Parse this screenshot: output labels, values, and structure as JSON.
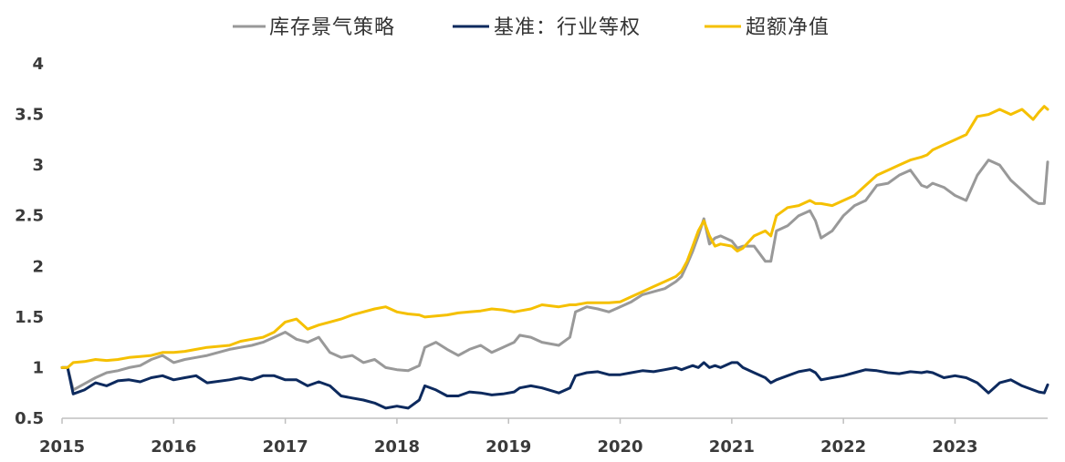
{
  "chart_data": {
    "type": "line",
    "title": "",
    "xlabel": "",
    "ylabel": "",
    "ylim": [
      0.5,
      4
    ],
    "xlim": [
      2015,
      2023.83
    ],
    "yticks": [
      "4",
      "3.5",
      "3",
      "2.5",
      "2",
      "1.5",
      "1",
      "0.5"
    ],
    "xticks": [
      "2015",
      "2016",
      "2017",
      "2018",
      "2019",
      "2020",
      "2021",
      "2022",
      "2023"
    ],
    "grid": false,
    "legend_position": "top",
    "series": [
      {
        "name": "库存景气策略",
        "color": "#999999",
        "x": [
          2015.0,
          2015.05,
          2015.1,
          2015.2,
          2015.3,
          2015.4,
          2015.5,
          2015.6,
          2015.7,
          2015.8,
          2015.9,
          2016.0,
          2016.1,
          2016.2,
          2016.3,
          2016.5,
          2016.6,
          2016.7,
          2016.8,
          2016.9,
          2017.0,
          2017.1,
          2017.2,
          2017.3,
          2017.4,
          2017.5,
          2017.6,
          2017.7,
          2017.8,
          2017.9,
          2018.0,
          2018.1,
          2018.2,
          2018.25,
          2018.35,
          2018.45,
          2018.55,
          2018.65,
          2018.75,
          2018.85,
          2018.95,
          2019.05,
          2019.1,
          2019.2,
          2019.3,
          2019.45,
          2019.55,
          2019.6,
          2019.7,
          2019.8,
          2019.9,
          2020.0,
          2020.1,
          2020.2,
          2020.3,
          2020.4,
          2020.5,
          2020.55,
          2020.6,
          2020.65,
          2020.7,
          2020.75,
          2020.8,
          2020.85,
          2020.9,
          2021.0,
          2021.05,
          2021.1,
          2021.2,
          2021.3,
          2021.35,
          2021.4,
          2021.5,
          2021.6,
          2021.7,
          2021.75,
          2021.8,
          2021.9,
          2022.0,
          2022.1,
          2022.2,
          2022.3,
          2022.4,
          2022.5,
          2022.6,
          2022.7,
          2022.75,
          2022.8,
          2022.9,
          2023.0,
          2023.1,
          2023.2,
          2023.3,
          2023.4,
          2023.5,
          2023.6,
          2023.7,
          2023.75,
          2023.8,
          2023.83
        ],
        "values": [
          1.0,
          1.0,
          0.78,
          0.84,
          0.9,
          0.95,
          0.97,
          1.0,
          1.02,
          1.08,
          1.12,
          1.05,
          1.08,
          1.1,
          1.12,
          1.18,
          1.2,
          1.22,
          1.25,
          1.3,
          1.35,
          1.28,
          1.25,
          1.3,
          1.15,
          1.1,
          1.12,
          1.05,
          1.08,
          1.0,
          0.98,
          0.97,
          1.02,
          1.2,
          1.25,
          1.18,
          1.12,
          1.18,
          1.22,
          1.15,
          1.2,
          1.25,
          1.32,
          1.3,
          1.25,
          1.22,
          1.3,
          1.55,
          1.6,
          1.58,
          1.55,
          1.6,
          1.65,
          1.72,
          1.75,
          1.78,
          1.85,
          1.9,
          2.02,
          2.15,
          2.3,
          2.47,
          2.22,
          2.28,
          2.3,
          2.25,
          2.18,
          2.2,
          2.2,
          2.05,
          2.05,
          2.35,
          2.4,
          2.5,
          2.55,
          2.45,
          2.28,
          2.35,
          2.5,
          2.6,
          2.65,
          2.8,
          2.82,
          2.9,
          2.95,
          2.8,
          2.78,
          2.82,
          2.78,
          2.7,
          2.65,
          2.9,
          3.05,
          3.0,
          2.85,
          2.75,
          2.65,
          2.62,
          2.62,
          3.03
        ]
      },
      {
        "name": "基准：行业等权",
        "color": "#0d2a5e",
        "x": [
          2015.0,
          2015.05,
          2015.1,
          2015.2,
          2015.3,
          2015.4,
          2015.5,
          2015.6,
          2015.7,
          2015.8,
          2015.9,
          2016.0,
          2016.1,
          2016.2,
          2016.3,
          2016.5,
          2016.6,
          2016.7,
          2016.8,
          2016.9,
          2017.0,
          2017.1,
          2017.2,
          2017.3,
          2017.4,
          2017.5,
          2017.6,
          2017.7,
          2017.8,
          2017.9,
          2018.0,
          2018.1,
          2018.2,
          2018.25,
          2018.35,
          2018.45,
          2018.55,
          2018.65,
          2018.75,
          2018.85,
          2018.95,
          2019.05,
          2019.1,
          2019.2,
          2019.3,
          2019.45,
          2019.55,
          2019.6,
          2019.7,
          2019.8,
          2019.9,
          2020.0,
          2020.1,
          2020.2,
          2020.3,
          2020.4,
          2020.5,
          2020.55,
          2020.6,
          2020.65,
          2020.7,
          2020.75,
          2020.8,
          2020.85,
          2020.9,
          2021.0,
          2021.05,
          2021.1,
          2021.2,
          2021.3,
          2021.35,
          2021.4,
          2021.5,
          2021.6,
          2021.7,
          2021.75,
          2021.8,
          2021.9,
          2022.0,
          2022.1,
          2022.2,
          2022.3,
          2022.4,
          2022.5,
          2022.6,
          2022.7,
          2022.75,
          2022.8,
          2022.9,
          2023.0,
          2023.1,
          2023.2,
          2023.3,
          2023.4,
          2023.5,
          2023.6,
          2023.7,
          2023.75,
          2023.8,
          2023.83
        ],
        "values": [
          1.0,
          1.0,
          0.74,
          0.78,
          0.85,
          0.82,
          0.87,
          0.88,
          0.86,
          0.9,
          0.92,
          0.88,
          0.9,
          0.92,
          0.85,
          0.88,
          0.9,
          0.88,
          0.92,
          0.92,
          0.88,
          0.88,
          0.82,
          0.86,
          0.82,
          0.72,
          0.7,
          0.68,
          0.65,
          0.6,
          0.62,
          0.6,
          0.68,
          0.82,
          0.78,
          0.72,
          0.72,
          0.76,
          0.75,
          0.73,
          0.74,
          0.76,
          0.8,
          0.82,
          0.8,
          0.75,
          0.8,
          0.92,
          0.95,
          0.96,
          0.93,
          0.93,
          0.95,
          0.97,
          0.96,
          0.98,
          1.0,
          0.98,
          1.0,
          1.02,
          1.0,
          1.05,
          1.0,
          1.02,
          1.0,
          1.05,
          1.05,
          1.0,
          0.95,
          0.9,
          0.85,
          0.88,
          0.92,
          0.96,
          0.98,
          0.95,
          0.88,
          0.9,
          0.92,
          0.95,
          0.98,
          0.97,
          0.95,
          0.94,
          0.96,
          0.95,
          0.96,
          0.95,
          0.9,
          0.92,
          0.9,
          0.85,
          0.75,
          0.85,
          0.88,
          0.82,
          0.78,
          0.76,
          0.75,
          0.83
        ]
      },
      {
        "name": "超额净值",
        "color": "#f5c000",
        "x": [
          2015.0,
          2015.05,
          2015.1,
          2015.2,
          2015.3,
          2015.4,
          2015.5,
          2015.6,
          2015.7,
          2015.8,
          2015.9,
          2016.0,
          2016.1,
          2016.2,
          2016.3,
          2016.5,
          2016.6,
          2016.7,
          2016.8,
          2016.9,
          2017.0,
          2017.1,
          2017.2,
          2017.3,
          2017.4,
          2017.5,
          2017.6,
          2017.7,
          2017.8,
          2017.9,
          2018.0,
          2018.1,
          2018.2,
          2018.25,
          2018.35,
          2018.45,
          2018.55,
          2018.65,
          2018.75,
          2018.85,
          2018.95,
          2019.05,
          2019.1,
          2019.2,
          2019.3,
          2019.45,
          2019.55,
          2019.6,
          2019.7,
          2019.8,
          2019.9,
          2020.0,
          2020.1,
          2020.2,
          2020.3,
          2020.4,
          2020.5,
          2020.55,
          2020.6,
          2020.65,
          2020.7,
          2020.75,
          2020.8,
          2020.85,
          2020.9,
          2021.0,
          2021.05,
          2021.1,
          2021.2,
          2021.3,
          2021.35,
          2021.4,
          2021.5,
          2021.6,
          2021.7,
          2021.75,
          2021.8,
          2021.9,
          2022.0,
          2022.1,
          2022.2,
          2022.3,
          2022.4,
          2022.5,
          2022.6,
          2022.7,
          2022.75,
          2022.8,
          2022.9,
          2023.0,
          2023.1,
          2023.2,
          2023.3,
          2023.4,
          2023.5,
          2023.6,
          2023.7,
          2023.75,
          2023.8,
          2023.83
        ],
        "values": [
          1.0,
          1.0,
          1.05,
          1.06,
          1.08,
          1.07,
          1.08,
          1.1,
          1.11,
          1.12,
          1.15,
          1.15,
          1.16,
          1.18,
          1.2,
          1.22,
          1.26,
          1.28,
          1.3,
          1.35,
          1.45,
          1.48,
          1.38,
          1.42,
          1.45,
          1.48,
          1.52,
          1.55,
          1.58,
          1.6,
          1.55,
          1.53,
          1.52,
          1.5,
          1.51,
          1.52,
          1.54,
          1.55,
          1.56,
          1.58,
          1.57,
          1.55,
          1.56,
          1.58,
          1.62,
          1.6,
          1.62,
          1.62,
          1.64,
          1.64,
          1.64,
          1.65,
          1.7,
          1.75,
          1.8,
          1.85,
          1.9,
          1.95,
          2.05,
          2.2,
          2.35,
          2.45,
          2.3,
          2.2,
          2.22,
          2.2,
          2.15,
          2.18,
          2.3,
          2.35,
          2.3,
          2.5,
          2.58,
          2.6,
          2.65,
          2.62,
          2.62,
          2.6,
          2.65,
          2.7,
          2.8,
          2.9,
          2.95,
          3.0,
          3.05,
          3.08,
          3.1,
          3.15,
          3.2,
          3.25,
          3.3,
          3.48,
          3.5,
          3.55,
          3.5,
          3.55,
          3.45,
          3.52,
          3.58,
          3.55
        ]
      }
    ]
  }
}
